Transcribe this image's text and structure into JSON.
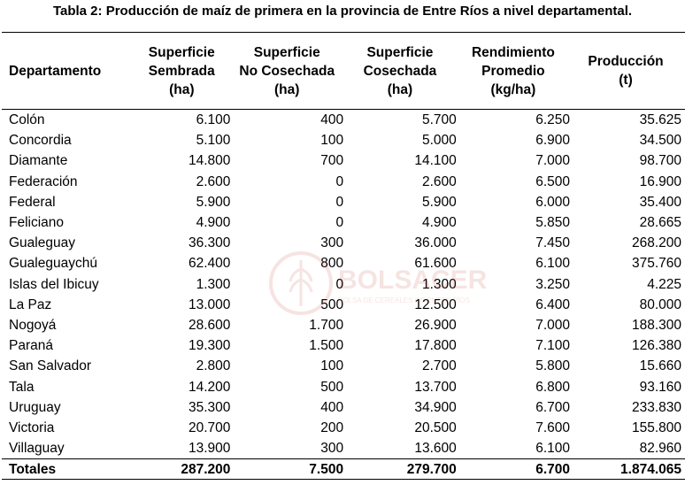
{
  "caption": "Tabla 2: Producción de maíz de primera en la provincia de Entre Ríos a nivel departamental.",
  "headers": [
    {
      "lines": [
        "Departamento"
      ]
    },
    {
      "lines": [
        "Superficie",
        "Sembrada",
        "(ha)"
      ]
    },
    {
      "lines": [
        "Superficie",
        "No Cosechada",
        "(ha)"
      ]
    },
    {
      "lines": [
        "Superficie",
        "Cosechada",
        "(ha)"
      ]
    },
    {
      "lines": [
        "Rendimiento",
        "Promedio",
        "(kg/ha)"
      ]
    },
    {
      "lines": [
        "Producción",
        "(t)"
      ]
    }
  ],
  "rows": [
    [
      "Colón",
      "6.100",
      "400",
      "5.700",
      "6.250",
      "35.625"
    ],
    [
      "Concordia",
      "5.100",
      "100",
      "5.000",
      "6.900",
      "34.500"
    ],
    [
      "Diamante",
      "14.800",
      "700",
      "14.100",
      "7.000",
      "98.700"
    ],
    [
      "Federación",
      "2.600",
      "0",
      "2.600",
      "6.500",
      "16.900"
    ],
    [
      "Federal",
      "5.900",
      "0",
      "5.900",
      "6.000",
      "35.400"
    ],
    [
      "Feliciano",
      "4.900",
      "0",
      "4.900",
      "5.850",
      "28.665"
    ],
    [
      "Gualeguay",
      "36.300",
      "300",
      "36.000",
      "7.450",
      "268.200"
    ],
    [
      "Gualeguaychú",
      "62.400",
      "800",
      "61.600",
      "6.100",
      "375.760"
    ],
    [
      "Islas del Ibicuy",
      "1.300",
      "0",
      "1.300",
      "3.250",
      "4.225"
    ],
    [
      "La Paz",
      "13.000",
      "500",
      "12.500",
      "6.400",
      "80.000"
    ],
    [
      "Nogoyá",
      "28.600",
      "1.700",
      "26.900",
      "7.000",
      "188.300"
    ],
    [
      "Paraná",
      "19.300",
      "1.500",
      "17.800",
      "7.100",
      "126.380"
    ],
    [
      "San Salvador",
      "2.800",
      "100",
      "2.700",
      "5.800",
      "15.660"
    ],
    [
      "Tala",
      "14.200",
      "500",
      "13.700",
      "6.800",
      "93.160"
    ],
    [
      "Uruguay",
      "35.300",
      "400",
      "34.900",
      "6.700",
      "233.830"
    ],
    [
      "Victoria",
      "20.700",
      "200",
      "20.500",
      "7.600",
      "155.800"
    ],
    [
      "Villaguay",
      "13.900",
      "300",
      "13.600",
      "6.100",
      "82.960"
    ]
  ],
  "totals": [
    "Totales",
    "287.200",
    "7.500",
    "279.700",
    "6.700",
    "1.874.065"
  ],
  "watermark": {
    "text": "BOLSACER",
    "subtext": "BOLSA DE CEREALES DE ENTRE RÍOS",
    "color": "#c0392b"
  }
}
